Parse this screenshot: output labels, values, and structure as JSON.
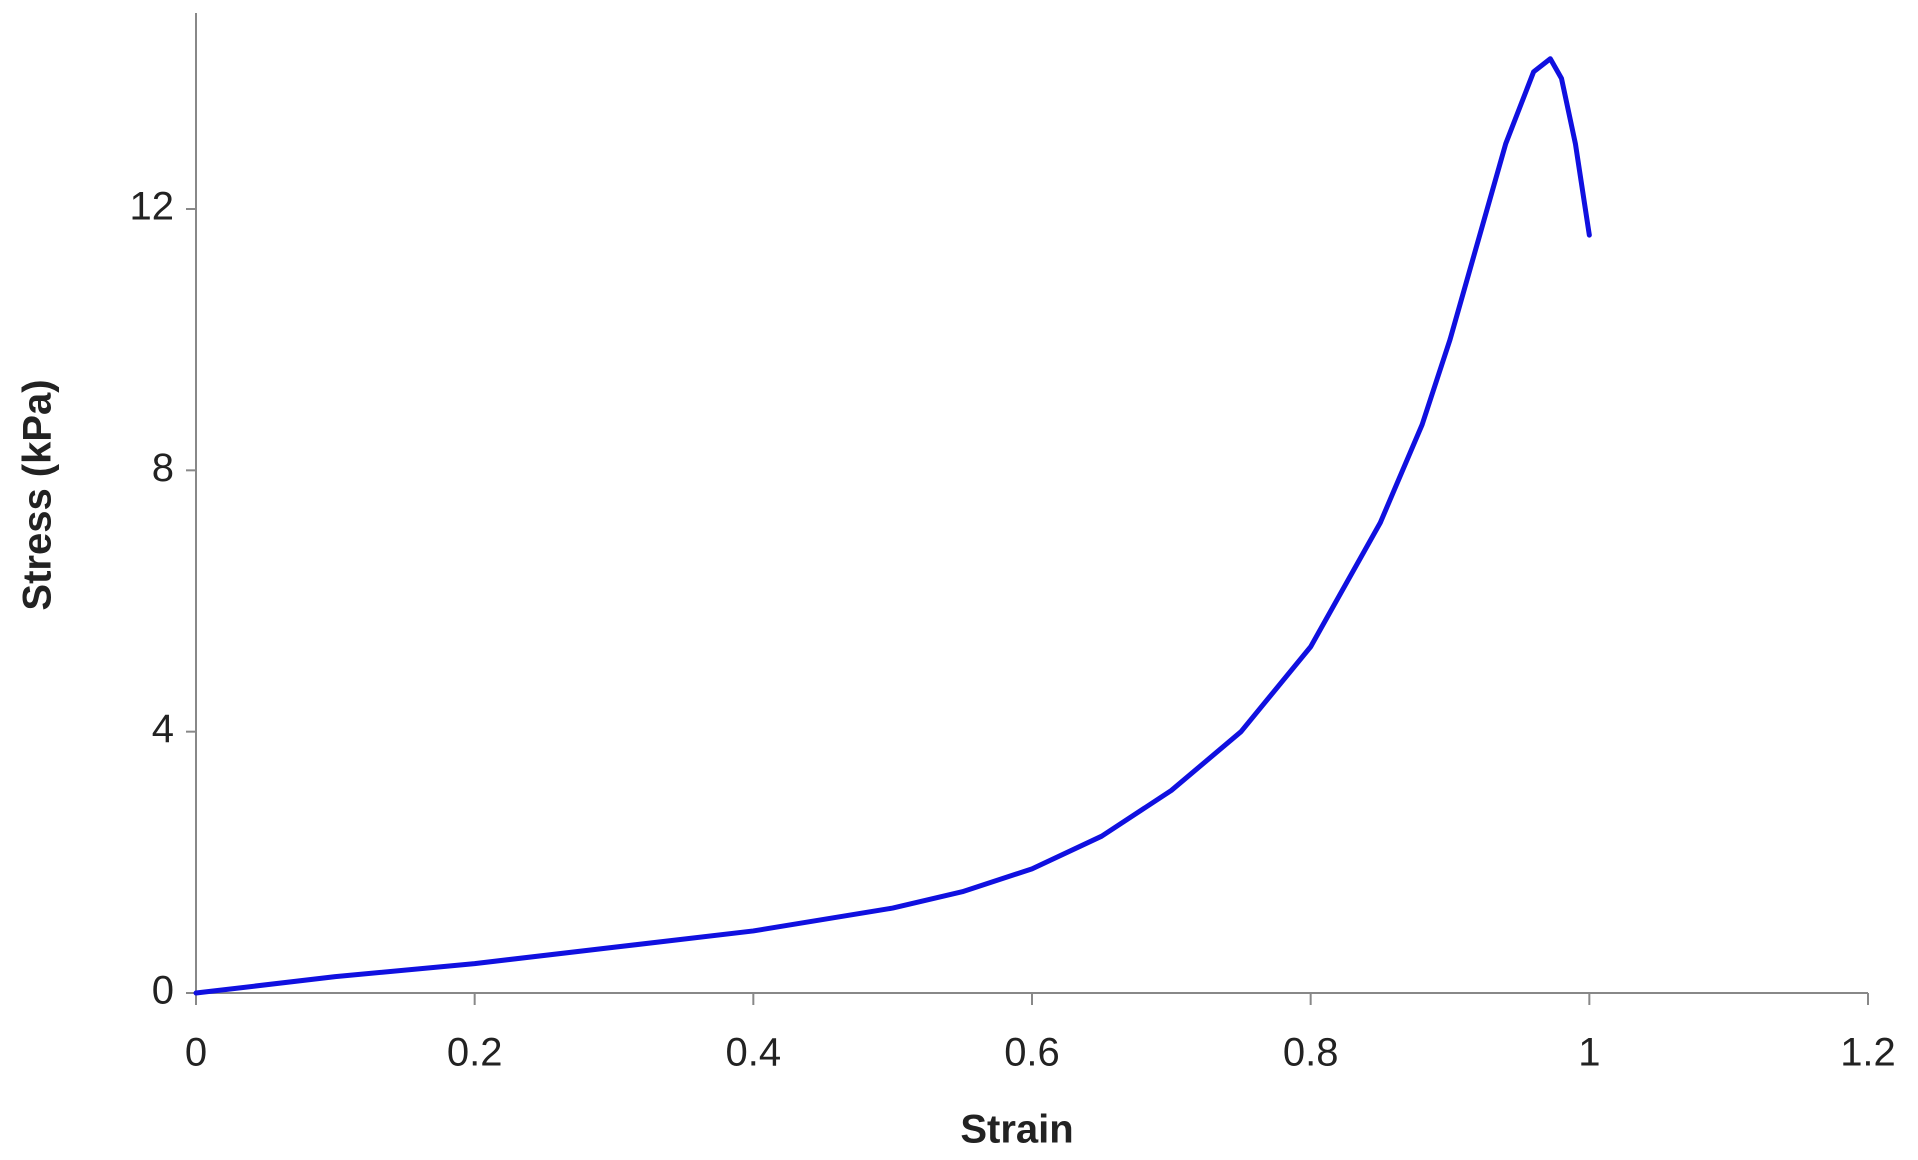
{
  "chart_data": {
    "type": "line",
    "x_label": "Strain",
    "y_label": "Stress (kPa)",
    "x": [
      0,
      0.1,
      0.2,
      0.3,
      0.4,
      0.5,
      0.55,
      0.6,
      0.65,
      0.7,
      0.75,
      0.8,
      0.85,
      0.88,
      0.9,
      0.92,
      0.94,
      0.96,
      0.972,
      0.98,
      0.99,
      1.0
    ],
    "series": [
      {
        "name": "Stress",
        "color": "#1010e0",
        "values": [
          0,
          0.25,
          0.45,
          0.7,
          0.95,
          1.3,
          1.55,
          1.9,
          2.4,
          3.1,
          4.0,
          5.3,
          7.2,
          8.7,
          10.0,
          11.5,
          13.0,
          14.1,
          14.3,
          14.0,
          13.0,
          11.6
        ]
      }
    ],
    "xlim": [
      0,
      1.2
    ],
    "xticks": [
      0,
      0.2,
      0.4,
      0.6,
      0.8,
      1,
      1.2
    ],
    "ylim": [
      0,
      15
    ],
    "yticks": [
      0,
      4,
      8,
      12
    ],
    "grid": false
  }
}
